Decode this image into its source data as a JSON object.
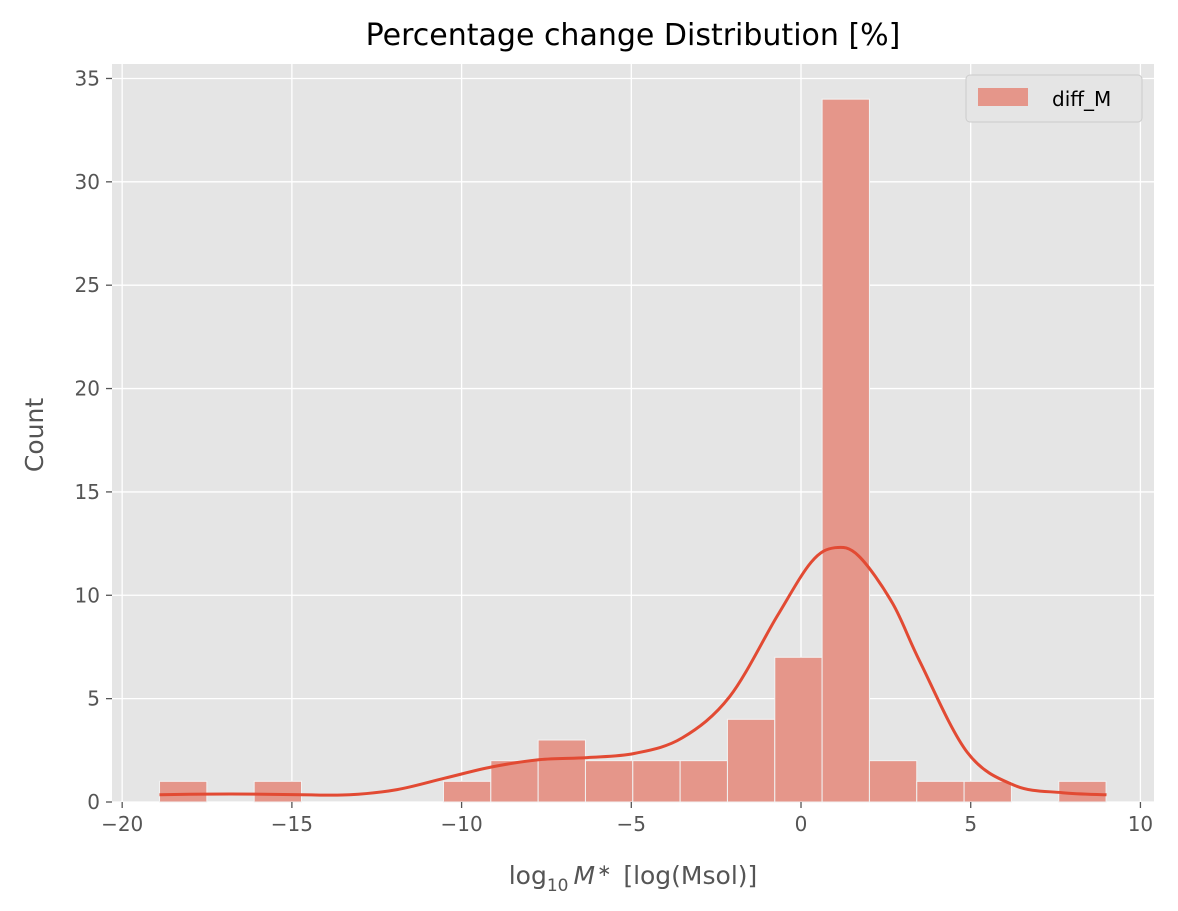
{
  "chart_data": {
    "type": "bar",
    "title": "Percentage change Distribution [%]",
    "xlabel_prefix": "log",
    "xlabel_sub": "10",
    "xlabel_var": "M",
    "xlabel_star": "∗",
    "xlabel_units": "[log(Msol)]",
    "ylabel": "Count",
    "xlim": [
      -20.3,
      10.4
    ],
    "ylim": [
      0,
      35.7
    ],
    "xticks": [
      -20,
      -15,
      -10,
      -5,
      0,
      5,
      10
    ],
    "xtick_labels": [
      "−20",
      "−15",
      "−10",
      "−5",
      "0",
      "5",
      "10"
    ],
    "yticks": [
      0,
      5,
      10,
      15,
      20,
      25,
      30,
      35
    ],
    "ytick_labels": [
      "0",
      "5",
      "10",
      "15",
      "20",
      "25",
      "30",
      "35"
    ],
    "grid": true,
    "legend_position": "top-right",
    "series": [
      {
        "name": "diff_M",
        "bin_start": -18.9,
        "bin_width": 1.3944,
        "counts": [
          1,
          0,
          1,
          0,
          0,
          0,
          1,
          2,
          3,
          2,
          2,
          2,
          4,
          7,
          34,
          2,
          1,
          1,
          0,
          1
        ],
        "kde": {
          "x": [
            -18.9,
            -17.5,
            -16.1,
            -14.7,
            -13.3,
            -11.9,
            -10.5,
            -9.1,
            -7.7,
            -6.3,
            -4.9,
            -3.5,
            -2.1,
            -0.7,
            0.3,
            1.0,
            1.7,
            2.7,
            3.5,
            4.9,
            6.3,
            7.7,
            9.0
          ],
          "y": [
            0.35,
            0.38,
            0.38,
            0.35,
            0.35,
            0.6,
            1.15,
            1.7,
            2.05,
            2.15,
            2.35,
            3.1,
            5.1,
            9.0,
            11.6,
            12.3,
            11.9,
            9.6,
            6.8,
            2.4,
            0.8,
            0.45,
            0.35
          ]
        }
      }
    ],
    "colors": {
      "bar_fill": "#E5968A",
      "bar_edge": "#F2F2F2",
      "kde_line": "#E24A33",
      "plot_bg": "#E5E5E5",
      "grid": "#FFFFFF",
      "axis_text": "#555555"
    }
  }
}
